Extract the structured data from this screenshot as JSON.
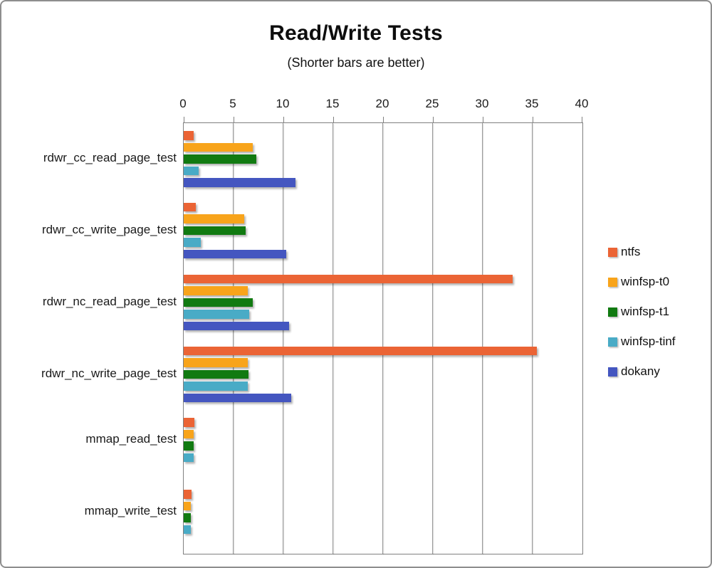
{
  "chart_data": {
    "type": "bar",
    "orientation": "horizontal",
    "title": "Read/Write Tests",
    "subtitle": "(Shorter bars are better)",
    "legend_position": "right",
    "grid": true,
    "x_axis": {
      "position": "top",
      "min": 0,
      "max": 40,
      "ticks": [
        0,
        5,
        10,
        15,
        20,
        25,
        30,
        35,
        40
      ]
    },
    "categories": [
      "rdwr_cc_read_page_test",
      "rdwr_cc_write_page_test",
      "rdwr_nc_read_page_test",
      "rdwr_nc_write_page_test",
      "mmap_read_test",
      "mmap_write_test"
    ],
    "series": [
      {
        "name": "ntfs",
        "color": "#EB6435",
        "values": [
          1.0,
          1.2,
          33.0,
          35.4,
          1.1,
          0.8
        ]
      },
      {
        "name": "winfsp-t0",
        "color": "#F8A41B",
        "values": [
          6.9,
          6.1,
          6.4,
          6.4,
          1.0,
          0.7
        ]
      },
      {
        "name": "winfsp-t1",
        "color": "#117A11",
        "values": [
          7.3,
          6.2,
          6.9,
          6.5,
          1.0,
          0.7
        ]
      },
      {
        "name": "winfsp-tinf",
        "color": "#49ABC6",
        "values": [
          1.5,
          1.7,
          6.6,
          6.4,
          1.0,
          0.7
        ]
      },
      {
        "name": "dokany",
        "color": "#4456C0",
        "values": [
          11.2,
          10.3,
          10.6,
          10.8,
          null,
          null
        ]
      }
    ]
  }
}
